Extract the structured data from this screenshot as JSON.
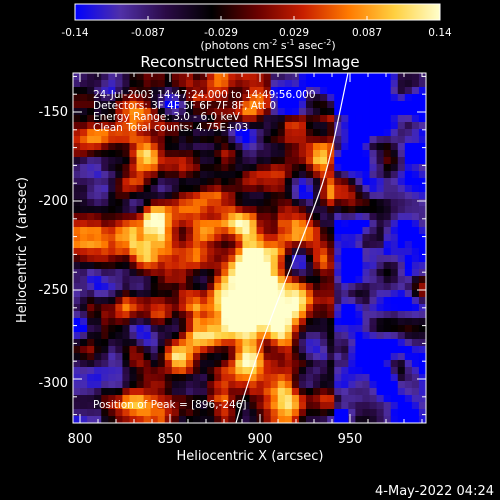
{
  "colorbar": {
    "ticks": [
      "-0.14",
      "-0.087",
      "-0.029",
      "0.029",
      "0.087",
      "0.14"
    ],
    "units_main": "(photons cm",
    "units_sup1": "-2",
    "units_mid": " s",
    "units_sup2": "-1",
    "units_end": " asec",
    "units_sup3": "-2",
    "units_close": ")",
    "stops": [
      "#0000ff",
      "#5030a8",
      "#2a0a45",
      "#000000",
      "#6a0000",
      "#c81e00",
      "#ff7a00",
      "#ffd040",
      "#ffffcc"
    ]
  },
  "image": {
    "title": "Reconstructed RHESSI Image",
    "info_lines": [
      "24-Jul-2003 14:47:24.000 to 14:49:56.000",
      "Detectors: 3F 4F 5F 6F 7F 8F, Att 0",
      "Energy Range: 3.0 - 6.0 keV",
      "Clean    Total counts: 4.75E+03"
    ],
    "peak_label": "Position of Peak = [896,-246]"
  },
  "axes": {
    "xlabel": "Heliocentric X (arcsec)",
    "ylabel": "Heliocentric Y (arcsec)",
    "x_ticks": [
      "800",
      "850",
      "900",
      "950"
    ],
    "y_ticks": [
      "-150",
      "-200",
      "-250",
      "-300"
    ]
  },
  "footer": {
    "date": "4-May-2022 04:24"
  }
}
